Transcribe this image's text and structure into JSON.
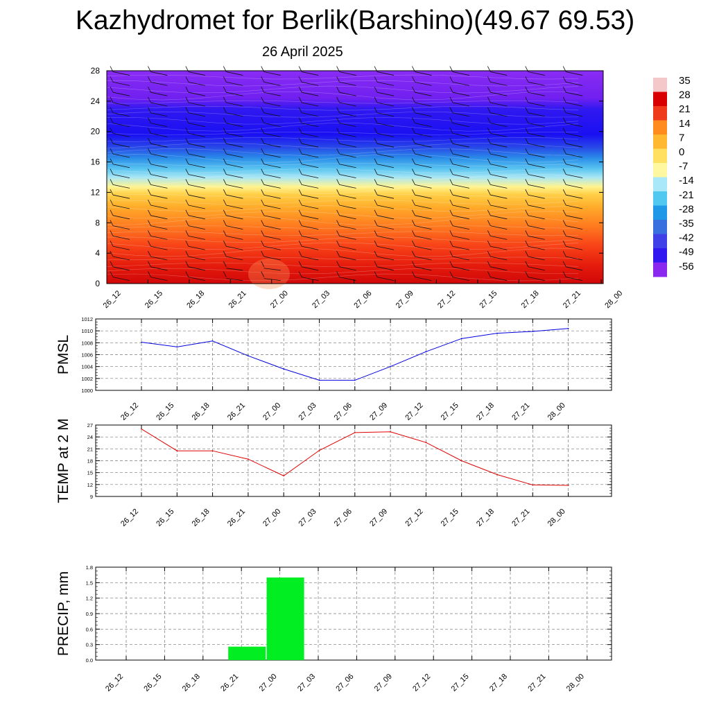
{
  "page": {
    "title": "Kazhydromet for Berlik(Barshino)(49.67 69.53)",
    "subtitle": "26 April 2025"
  },
  "chart_data": [
    {
      "type": "heatmap",
      "description_of_field": "air temperature vertical cross-section with wind barbs",
      "x_categories": [
        "26_12",
        "26_15",
        "26_18",
        "26_21",
        "27_00",
        "27_03",
        "27_06",
        "27_09",
        "27_12",
        "27_15",
        "27_18",
        "27_21",
        "28_00"
      ],
      "y_ticks": [
        0,
        4,
        8,
        12,
        16,
        20,
        24,
        28
      ],
      "ylim": [
        0,
        28
      ],
      "colorbar_labels": [
        "35",
        "28",
        "21",
        "14",
        "7",
        "0",
        "-7",
        "-14",
        "-21",
        "-28",
        "-35",
        "-42",
        "-49",
        "-56"
      ],
      "colorbar_colors": [
        "#f4c8c8",
        "#d80000",
        "#f03a1c",
        "#ff8a1e",
        "#ffb830",
        "#ffe060",
        "#fff8a0",
        "#a8e8f8",
        "#50c8f0",
        "#2098e8",
        "#3870e0",
        "#4040e8",
        "#3018f0",
        "#8a28f0"
      ]
    },
    {
      "type": "line",
      "ylabel": "PMSL",
      "x": [
        "26_12",
        "26_15",
        "26_18",
        "26_21",
        "27_00",
        "27_03",
        "27_06",
        "27_09",
        "27_12",
        "27_15",
        "27_18",
        "27_21",
        "28_00"
      ],
      "series": [
        {
          "values": [
            1008.1,
            1007.3,
            1008.3,
            1005.8,
            1003.6,
            1001.7,
            1001.7,
            1004.0,
            1006.5,
            1008.7,
            1009.6,
            1009.9,
            1010.4
          ],
          "color": "#0000dd"
        }
      ],
      "yticks": [
        "1000",
        "1002",
        "1004",
        "1006",
        "1008",
        "1010",
        "1012"
      ],
      "ylim": [
        1000,
        1012
      ],
      "grid": true
    },
    {
      "type": "line",
      "ylabel": "TEMP at 2 M",
      "x": [
        "26_12",
        "26_15",
        "26_18",
        "26_21",
        "27_00",
        "27_03",
        "27_06",
        "27_09",
        "27_12",
        "27_15",
        "27_18",
        "27_21",
        "28_00"
      ],
      "series": [
        {
          "values": [
            26.0,
            20.5,
            20.5,
            18.4,
            14.2,
            20.6,
            25.1,
            25.3,
            22.6,
            18.0,
            14.5,
            11.9,
            11.8
          ],
          "color": "#e00000"
        }
      ],
      "yticks": [
        "9",
        "12",
        "15",
        "18",
        "21",
        "24",
        "27"
      ],
      "ylim": [
        9,
        27
      ],
      "grid": true
    },
    {
      "type": "bar",
      "ylabel": "PRECIP, mm",
      "categories": [
        "26_12",
        "26_15",
        "26_18",
        "26_21",
        "27_00",
        "27_03",
        "27_06",
        "27_09",
        "27_12",
        "27_15",
        "27_18",
        "27_21",
        "28_00"
      ],
      "values": [
        0,
        0,
        0,
        0.26,
        1.6,
        0,
        0,
        0,
        0,
        0,
        0,
        0,
        0
      ],
      "color": "#00ee22",
      "yticks": [
        "0.0",
        "0.3",
        "0.6",
        "0.9",
        "1.2",
        "1.5",
        "1.8"
      ],
      "ylim": [
        0,
        1.8
      ],
      "grid": true
    }
  ]
}
